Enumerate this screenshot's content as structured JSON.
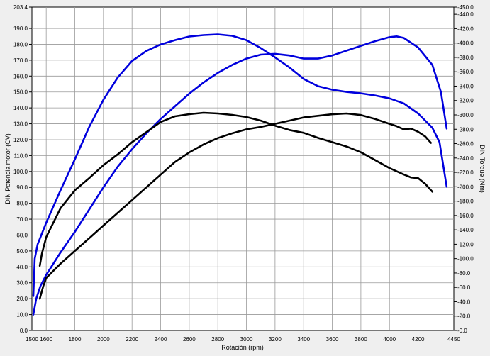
{
  "chart_data": {
    "type": "line",
    "title": "",
    "xlabel": "Rotación (rpm)",
    "ylabel_left": "DIN Potencia motor (CV)",
    "ylabel_right": "DIN Torque (Nm)",
    "xlim": [
      1500,
      4450
    ],
    "ylim_left": [
      0,
      203.4
    ],
    "ylim_right": [
      0,
      450
    ],
    "grid": true,
    "x_ticks": [
      1500,
      1600,
      1800,
      2000,
      2200,
      2400,
      2600,
      2800,
      3000,
      3200,
      3400,
      3600,
      3800,
      4000,
      4200,
      4450
    ],
    "y_left_ticks": [
      0,
      10,
      20,
      30,
      40,
      50,
      60,
      70,
      80,
      90,
      100,
      110,
      120,
      130,
      140,
      150,
      160,
      170,
      180,
      190,
      203.4
    ],
    "y_left_tick_labels": [
      "0.0",
      "10.0",
      "20.0",
      "30.0",
      "40.0",
      "50.0",
      "60.0",
      "70.0",
      "80.0",
      "90.0",
      "100.0",
      "110.0",
      "120.0",
      "130.0",
      "140.0",
      "150.0",
      "160.0",
      "170.0",
      "180.0",
      "190.0",
      "203.4"
    ],
    "y_right_ticks": [
      0,
      20,
      40,
      60,
      80,
      100,
      120,
      140,
      160,
      180,
      200,
      220,
      240,
      260,
      280,
      300,
      320,
      340,
      360,
      380,
      400,
      420,
      440,
      450
    ],
    "y_right_tick_labels": [
      "0.0",
      "20.0",
      "40.0",
      "60.0",
      "80.0",
      "100.0",
      "120.0",
      "140.0",
      "160.0",
      "180.0",
      "200.0",
      "220.0",
      "240.0",
      "260.0",
      "280.0",
      "300.0",
      "320.0",
      "340.0",
      "360.0",
      "380.0",
      "400.0",
      "420.0",
      "440.0",
      "450.0"
    ],
    "series": [
      {
        "color": "#0000dd",
        "axis": "left",
        "points": [
          [
            1510,
            10
          ],
          [
            1530,
            20
          ],
          [
            1560,
            28
          ],
          [
            1600,
            35
          ],
          [
            1700,
            49
          ],
          [
            1800,
            62
          ],
          [
            1900,
            76
          ],
          [
            2000,
            90
          ],
          [
            2100,
            103
          ],
          [
            2200,
            114
          ],
          [
            2300,
            124
          ],
          [
            2400,
            133
          ],
          [
            2500,
            141
          ],
          [
            2600,
            149
          ],
          [
            2700,
            156
          ],
          [
            2800,
            162
          ],
          [
            2900,
            167
          ],
          [
            3000,
            171
          ],
          [
            3100,
            173.5
          ],
          [
            3200,
            174
          ],
          [
            3300,
            173
          ],
          [
            3400,
            171
          ],
          [
            3500,
            171
          ],
          [
            3600,
            173
          ],
          [
            3700,
            176
          ],
          [
            3800,
            179
          ],
          [
            3900,
            182
          ],
          [
            4000,
            184.5
          ],
          [
            4050,
            185
          ],
          [
            4100,
            184
          ],
          [
            4200,
            178
          ],
          [
            4300,
            167
          ],
          [
            4360,
            150
          ],
          [
            4400,
            127
          ]
        ]
      },
      {
        "color": "#000000",
        "axis": "left",
        "points": [
          [
            1555,
            20
          ],
          [
            1580,
            28
          ],
          [
            1600,
            33
          ],
          [
            1700,
            42
          ],
          [
            1800,
            50
          ],
          [
            1900,
            58
          ],
          [
            2000,
            66
          ],
          [
            2100,
            74
          ],
          [
            2200,
            82
          ],
          [
            2300,
            90
          ],
          [
            2400,
            98
          ],
          [
            2500,
            106
          ],
          [
            2600,
            112
          ],
          [
            2700,
            117
          ],
          [
            2800,
            121
          ],
          [
            2900,
            124
          ],
          [
            3000,
            126.5
          ],
          [
            3100,
            128
          ],
          [
            3200,
            130
          ],
          [
            3300,
            132
          ],
          [
            3400,
            134
          ],
          [
            3500,
            135
          ],
          [
            3600,
            136
          ],
          [
            3700,
            136.5
          ],
          [
            3800,
            135.5
          ],
          [
            3900,
            133
          ],
          [
            4000,
            130
          ],
          [
            4050,
            128.5
          ],
          [
            4100,
            126.5
          ],
          [
            4150,
            127
          ],
          [
            4200,
            125
          ],
          [
            4250,
            122
          ],
          [
            4290,
            118
          ]
        ]
      },
      {
        "color": "#0000dd",
        "axis": "right",
        "points": [
          [
            1510,
            48
          ],
          [
            1520,
            100
          ],
          [
            1540,
            120
          ],
          [
            1600,
            150
          ],
          [
            1700,
            195
          ],
          [
            1800,
            238
          ],
          [
            1900,
            283
          ],
          [
            2000,
            321
          ],
          [
            2100,
            352
          ],
          [
            2200,
            375
          ],
          [
            2300,
            389
          ],
          [
            2400,
            398
          ],
          [
            2500,
            404
          ],
          [
            2600,
            409
          ],
          [
            2700,
            411
          ],
          [
            2800,
            412
          ],
          [
            2900,
            410
          ],
          [
            3000,
            404
          ],
          [
            3100,
            393
          ],
          [
            3200,
            380
          ],
          [
            3300,
            366
          ],
          [
            3400,
            350
          ],
          [
            3500,
            340
          ],
          [
            3600,
            335
          ],
          [
            3700,
            332
          ],
          [
            3800,
            330
          ],
          [
            3900,
            327
          ],
          [
            4000,
            323
          ],
          [
            4100,
            316
          ],
          [
            4200,
            302
          ],
          [
            4300,
            282
          ],
          [
            4350,
            262
          ],
          [
            4400,
            200
          ]
        ]
      },
      {
        "color": "#000000",
        "axis": "right",
        "points": [
          [
            1555,
            90
          ],
          [
            1570,
            107
          ],
          [
            1600,
            130
          ],
          [
            1700,
            170
          ],
          [
            1800,
            195
          ],
          [
            1900,
            212
          ],
          [
            2000,
            230
          ],
          [
            2100,
            245
          ],
          [
            2200,
            262
          ],
          [
            2300,
            276
          ],
          [
            2400,
            290
          ],
          [
            2500,
            298
          ],
          [
            2600,
            301
          ],
          [
            2700,
            303
          ],
          [
            2800,
            302
          ],
          [
            2900,
            300
          ],
          [
            3000,
            297
          ],
          [
            3100,
            292
          ],
          [
            3200,
            285
          ],
          [
            3300,
            279
          ],
          [
            3400,
            275
          ],
          [
            3500,
            268
          ],
          [
            3600,
            262
          ],
          [
            3700,
            256
          ],
          [
            3800,
            248
          ],
          [
            3900,
            237
          ],
          [
            4000,
            226
          ],
          [
            4100,
            217
          ],
          [
            4150,
            213
          ],
          [
            4200,
            212
          ],
          [
            4250,
            204
          ],
          [
            4300,
            193
          ]
        ]
      }
    ]
  }
}
